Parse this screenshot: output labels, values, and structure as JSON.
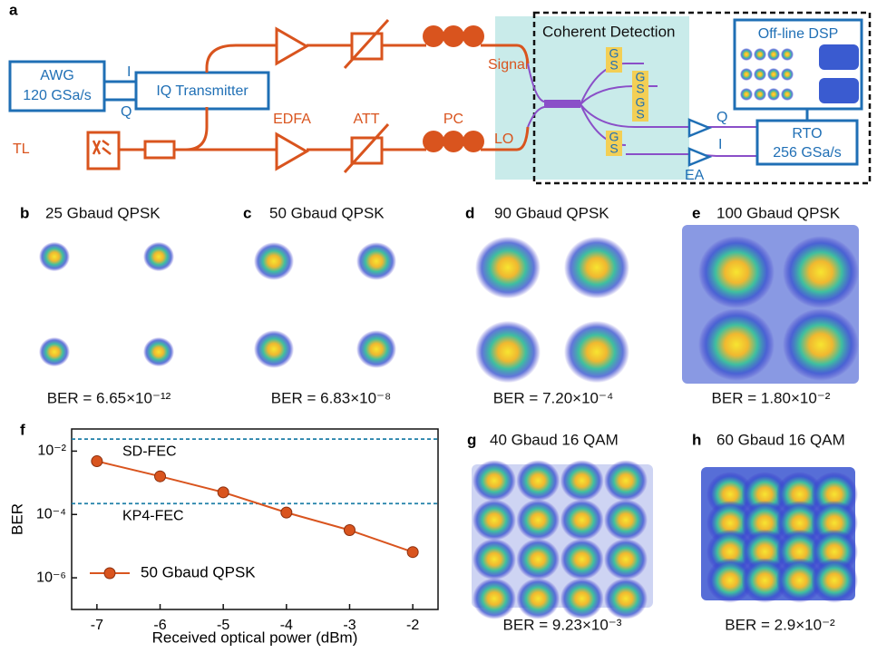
{
  "diagram": {
    "label": "a",
    "awg": "AWG",
    "awg_rate": "120 GSa/s",
    "i_in": "I",
    "q_in": "Q",
    "iq": "IQ Transmitter",
    "tl": "TL",
    "edfa": "EDFA",
    "att": "ATT",
    "pc": "PC",
    "signal": "Signal",
    "lo": "LO",
    "coherent": "Coherent Detection",
    "dsp": "Off-line DSP",
    "g": "G",
    "s": "S",
    "q_out": "Q",
    "i_out": "I",
    "ea": "EA",
    "rto": "RTO",
    "rto_rate": "256 GSa/s"
  },
  "panels": [
    {
      "label": "b",
      "title": "25 Gbaud QPSK",
      "ber": "BER = 6.65×10⁻¹²"
    },
    {
      "label": "c",
      "title": "50 Gbaud QPSK",
      "ber": "BER = 6.83×10⁻⁸"
    },
    {
      "label": "d",
      "title": "90 Gbaud QPSK",
      "ber": "BER = 7.20×10⁻⁴"
    },
    {
      "label": "e",
      "title": "100 Gbaud QPSK",
      "ber": "BER = 1.80×10⁻²"
    },
    {
      "label": "g",
      "title": "40 Gbaud 16 QAM",
      "ber": "BER = 9.23×10⁻³"
    },
    {
      "label": "h",
      "title": "60 Gbaud 16 QAM",
      "ber": "BER = 2.9×10⁻²"
    }
  ],
  "chart_data": {
    "type": "line",
    "panel_label": "f",
    "xlabel": "Received optical power (dBm)",
    "ylabel": "BER",
    "x": [
      -7,
      -6,
      -5,
      -4,
      -3,
      -2
    ],
    "series": [
      {
        "name": "50 Gbaud QPSK",
        "color": "#d9541e",
        "values": [
          0.0048,
          0.0016,
          0.0005,
          0.000115,
          3.2e-05,
          6.5e-06
        ]
      }
    ],
    "xlim": [
      -7.4,
      -1.6
    ],
    "xticks": [
      -7,
      -6,
      -5,
      -4,
      -3,
      -2
    ],
    "ylim": [
      1e-07,
      0.05
    ],
    "log_y": true,
    "yticks": [
      {
        "value": 0.01,
        "label": "10⁻²"
      },
      {
        "value": 0.0001,
        "label": "10⁻⁴"
      },
      {
        "value": 1e-06,
        "label": "10⁻⁶"
      }
    ],
    "thresholds": [
      {
        "label": "SD-FEC",
        "value": 0.024
      },
      {
        "label": "KP4-FEC",
        "value": 0.00022
      }
    ],
    "threshold_color": "#1f7fa8",
    "legend": "lower left"
  }
}
